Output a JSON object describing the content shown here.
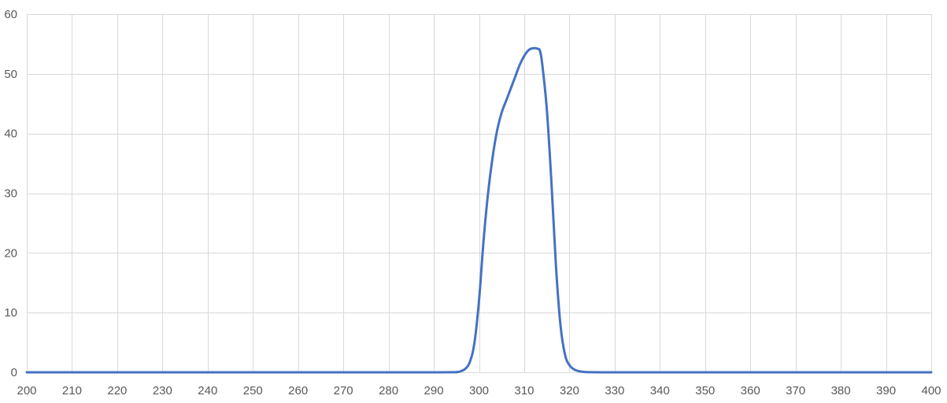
{
  "chart_data": {
    "type": "line",
    "title": "",
    "xlabel": "",
    "ylabel": "",
    "xlim": [
      200,
      400
    ],
    "ylim": [
      0,
      60
    ],
    "x_ticks": [
      200,
      210,
      220,
      230,
      240,
      250,
      260,
      270,
      280,
      290,
      300,
      310,
      320,
      330,
      340,
      350,
      360,
      370,
      380,
      390,
      400
    ],
    "y_ticks": [
      0,
      10,
      20,
      30,
      40,
      50,
      60
    ],
    "grid": true,
    "legend": "none",
    "series": [
      {
        "color": "#4472c4",
        "x": [
          200,
          250,
          290,
          295,
          296,
          297,
          298,
          299,
          300,
          301,
          302,
          303,
          304,
          305,
          306,
          307,
          308,
          309,
          310,
          311,
          312,
          313,
          313.5,
          314,
          315,
          316,
          317,
          318,
          319,
          320,
          321,
          322,
          323,
          324,
          325,
          327,
          330,
          350,
          400
        ],
        "y": [
          0,
          0,
          0,
          0.05,
          0.2,
          0.6,
          1.8,
          5,
          12,
          22,
          30,
          36,
          40.5,
          43.5,
          45.5,
          47.5,
          49.5,
          51.5,
          53,
          54,
          54.3,
          54.2,
          53.8,
          51.5,
          44,
          32,
          18,
          8,
          3,
          1.2,
          0.5,
          0.2,
          0.08,
          0.03,
          0.01,
          0,
          0,
          0,
          0
        ]
      }
    ]
  }
}
